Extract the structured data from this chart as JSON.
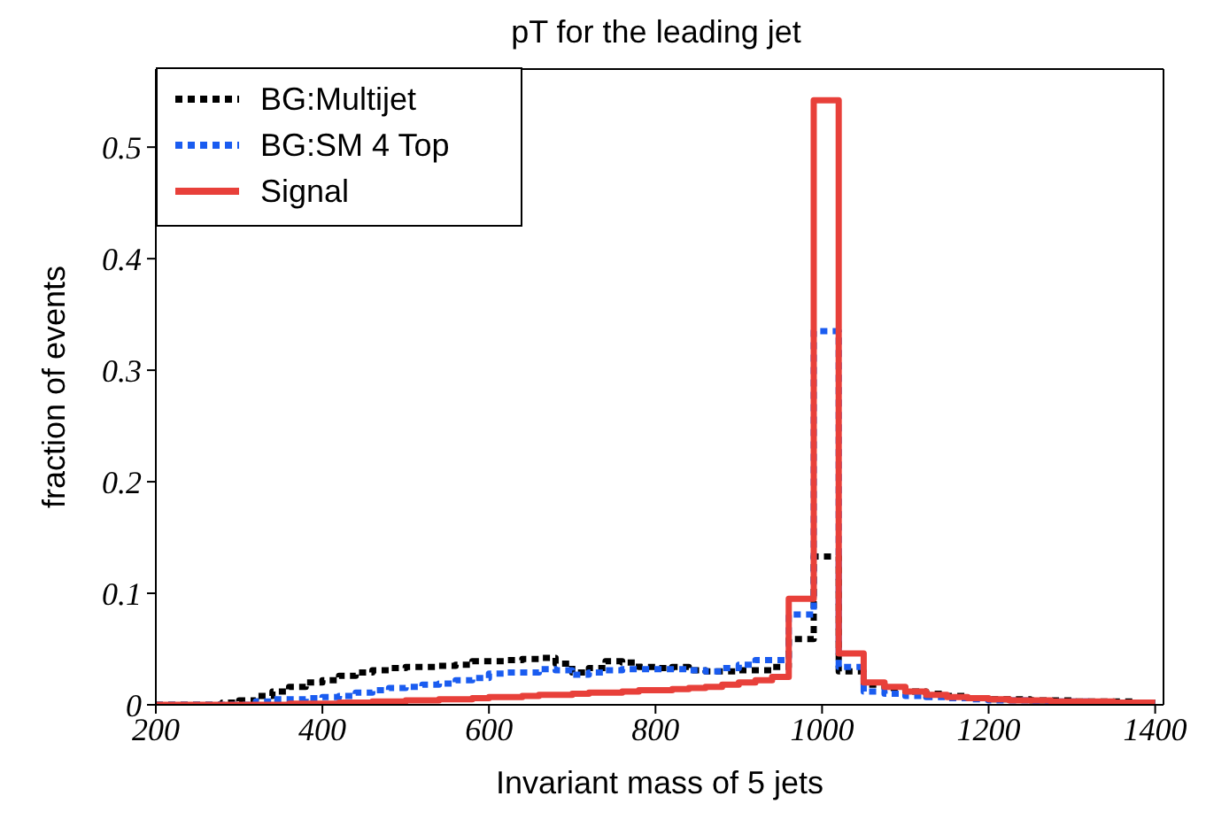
{
  "chart_data": {
    "type": "histogram",
    "title": "pT for the leading jet",
    "xlabel": "Invariant mass of 5 jets",
    "ylabel": "fraction of events",
    "bins": [
      200,
      220,
      240,
      260,
      280,
      300,
      320,
      340,
      360,
      380,
      400,
      420,
      440,
      460,
      480,
      500,
      520,
      540,
      560,
      580,
      600,
      620,
      640,
      660,
      680,
      700,
      720,
      740,
      760,
      780,
      800,
      820,
      840,
      860,
      880,
      900,
      920,
      940,
      960,
      990,
      1020,
      1050,
      1075,
      1100,
      1125,
      1150,
      1175,
      1200,
      1225,
      1250,
      1275,
      1300,
      1325,
      1350,
      1375,
      1400
    ],
    "series": [
      {
        "name": "BG:Multijet",
        "color": "#000000",
        "line_style": "dotted",
        "values": [
          0,
          0,
          0,
          0,
          0.002,
          0.004,
          0.008,
          0.012,
          0.016,
          0.02,
          0.022,
          0.026,
          0.029,
          0.031,
          0.033,
          0.034,
          0.034,
          0.035,
          0.036,
          0.039,
          0.039,
          0.04,
          0.041,
          0.042,
          0.037,
          0.029,
          0.033,
          0.039,
          0.038,
          0.034,
          0.033,
          0.034,
          0.031,
          0.03,
          0.03,
          0.031,
          0.031,
          0.034,
          0.059,
          0.133,
          0.03,
          0.018,
          0.015,
          0.012,
          0.01,
          0.008,
          0.006,
          0.005,
          0.005,
          0.004,
          0.004,
          0.003,
          0.003,
          0.003,
          0.002
        ]
      },
      {
        "name": "BG:SM 4 Top",
        "color": "#1a5cf0",
        "line_style": "dotted",
        "values": [
          0,
          0,
          0,
          0,
          0,
          0,
          0.003,
          0.005,
          0.005,
          0.006,
          0.007,
          0.008,
          0.011,
          0.013,
          0.015,
          0.016,
          0.018,
          0.019,
          0.022,
          0.024,
          0.028,
          0.029,
          0.029,
          0.032,
          0.031,
          0.027,
          0.029,
          0.031,
          0.032,
          0.032,
          0.032,
          0.032,
          0.031,
          0.03,
          0.033,
          0.036,
          0.04,
          0.04,
          0.081,
          0.335,
          0.034,
          0.012,
          0.01,
          0.008,
          0.007,
          0.006,
          0.005,
          0.004,
          0.004,
          0.003,
          0.003,
          0.003,
          0.002,
          0.002,
          0.001
        ]
      },
      {
        "name": "Signal",
        "color": "#e8403a",
        "line_style": "solid",
        "values": [
          0,
          0,
          0,
          0,
          0,
          0,
          0,
          0,
          0.001,
          0.001,
          0.001,
          0.002,
          0.002,
          0.003,
          0.003,
          0.004,
          0.004,
          0.005,
          0.005,
          0.006,
          0.007,
          0.007,
          0.008,
          0.009,
          0.009,
          0.01,
          0.011,
          0.011,
          0.012,
          0.013,
          0.013,
          0.014,
          0.015,
          0.016,
          0.018,
          0.02,
          0.022,
          0.025,
          0.095,
          0.542,
          0.046,
          0.02,
          0.016,
          0.012,
          0.009,
          0.007,
          0.006,
          0.005,
          0.004,
          0.004,
          0.003,
          0.003,
          0.003,
          0.002,
          0.002
        ]
      }
    ],
    "xlim": [
      200,
      1410
    ],
    "ylim": [
      0,
      0.57
    ],
    "xticks": [
      200,
      400,
      600,
      800,
      1000,
      1200,
      1400
    ],
    "yticks": [
      0,
      0.1,
      0.2,
      0.3,
      0.4,
      0.5
    ],
    "grid": false,
    "legend": "top left"
  }
}
